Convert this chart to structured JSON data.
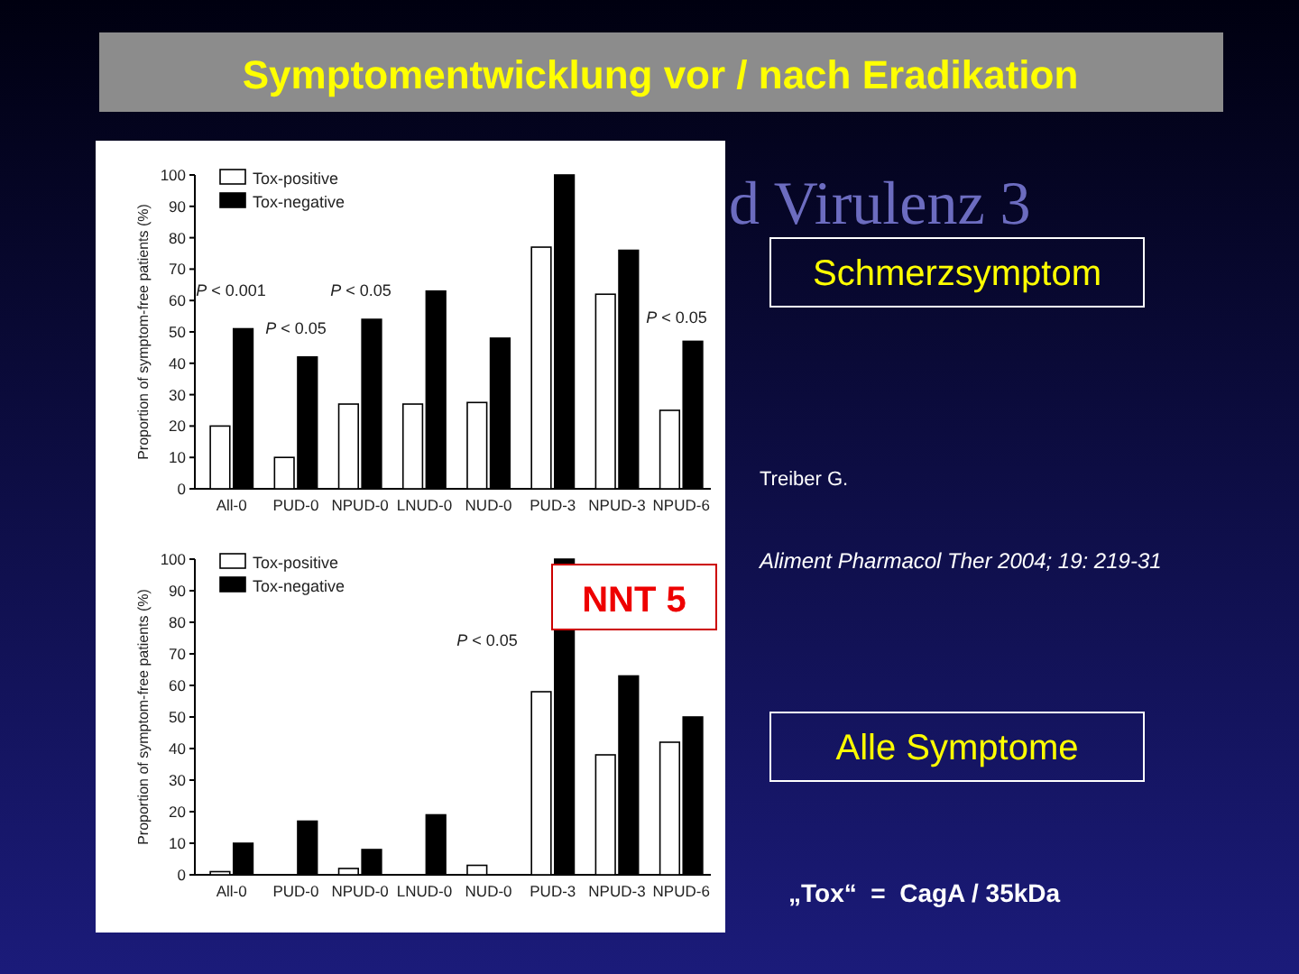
{
  "chart_data": [
    {
      "type": "bar",
      "ylabel": "Proportion of symptom-free patients (%)",
      "categories": [
        "All-0",
        "PUD-0",
        "NPUD-0",
        "LNUD-0",
        "NUD-0",
        "PUD-3",
        "NPUD-3",
        "NPUD-6"
      ],
      "series": [
        {
          "name": "Tox-positive",
          "color": "#ffffff",
          "values": [
            20,
            10,
            27,
            27,
            27.5,
            77,
            62,
            25
          ]
        },
        {
          "name": "Tox-negative",
          "color": "#000000",
          "values": [
            51,
            42,
            54,
            63,
            48,
            100,
            76,
            47
          ]
        }
      ],
      "ylim": [
        0,
        100
      ],
      "yticks": [
        0,
        10,
        20,
        30,
        40,
        50,
        60,
        70,
        80,
        90,
        100
      ],
      "legend": "top left",
      "annotations": [
        "P < 0.001",
        "P < 0.05",
        "P < 0.05",
        "P < 0.05"
      ]
    },
    {
      "type": "bar",
      "ylabel": "Proportion of symptom-free patients (%)",
      "categories": [
        "All-0",
        "PUD-0",
        "NPUD-0",
        "LNUD-0",
        "NUD-0",
        "PUD-3",
        "NPUD-3",
        "NPUD-6"
      ],
      "series": [
        {
          "name": "Tox-positive",
          "color": "#ffffff",
          "values": [
            1,
            0,
            2,
            0,
            3,
            58,
            38,
            42
          ]
        },
        {
          "name": "Tox-negative",
          "color": "#000000",
          "values": [
            10,
            17,
            8,
            19,
            0,
            100,
            63,
            50
          ]
        }
      ],
      "ylim": [
        0,
        100
      ],
      "yticks": [
        0,
        10,
        20,
        30,
        40,
        50,
        60,
        70,
        80,
        90,
        100
      ],
      "legend": "top left",
      "annotations": [
        "NNT 5",
        "P < 0.05"
      ]
    },
    {
      "type": "other",
      "title": "Symptomentwicklung vor / nach Eradikation",
      "annotations": [
        "d Virulenz 3",
        "Schmerzsymptom",
        "Treiber G.",
        "Aliment Pharmacol Ther 2004; 19: 219-31",
        "Alle Symptome",
        "„Tox“  =  CagA / 35kDa"
      ]
    }
  ]
}
